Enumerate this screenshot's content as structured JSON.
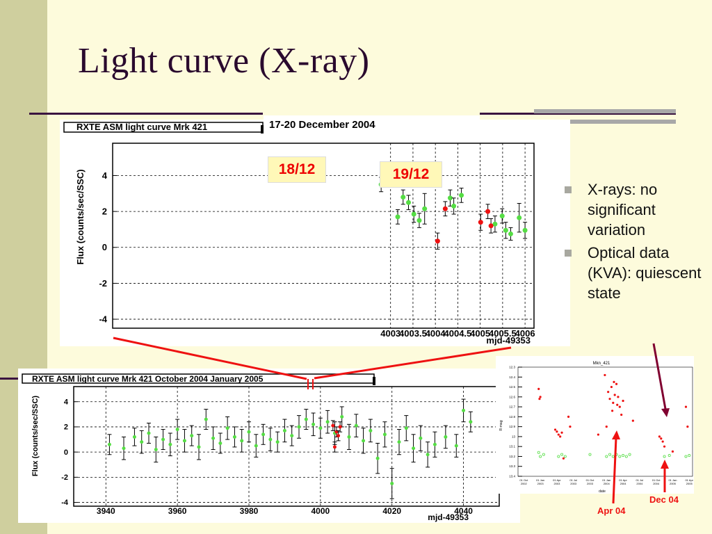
{
  "slide": {
    "title": "Light curve (X-ray)",
    "bullets": [
      "X-rays: no significant variation",
      "Optical data (KVA): quiescent state"
    ],
    "callouts": {
      "date_range": "17-20 December 2004",
      "label_18": "18/12",
      "label_19": "19/12",
      "apr": "Apr 04",
      "dec": "Dec 04"
    },
    "colors": {
      "title": "#2a0a2e",
      "background": "#fdfbdc",
      "side_bar": "#cfcf9e",
      "rule": "#3a1440",
      "green_points": "#55dd44",
      "red_points": "#ee1111",
      "arrow_dark": "#800030"
    }
  },
  "chart_data": [
    {
      "type": "scatter",
      "title": "RXTE ASM light curve Mrk 421",
      "xlabel": "mjd-49353",
      "ylabel": "Flux (counts/sec/SSC)",
      "xlim": [
        3996.8,
        4006.2
      ],
      "ylim": [
        -4.5,
        5.8
      ],
      "xticks": [
        4003,
        4003.5,
        4004,
        4004.5,
        4005,
        4005.5,
        4006
      ],
      "xtick_labels": [
        "4003",
        "4003.5",
        "4004",
        "4004.5",
        "4005",
        "4005.5",
        "4006"
      ],
      "yticks": [
        -4,
        -2,
        0,
        2,
        4
      ],
      "grid": true,
      "series": [
        {
          "color": "green",
          "points": [
            {
              "x": 4002.79,
              "y": 3.5,
              "err": 0.4
            },
            {
              "x": 4003.16,
              "y": 1.7,
              "err": 0.4
            },
            {
              "x": 4003.28,
              "y": 2.8,
              "err": 0.4
            },
            {
              "x": 4003.4,
              "y": 2.5,
              "err": 0.4
            },
            {
              "x": 4003.52,
              "y": 1.85,
              "err": 0.45
            },
            {
              "x": 4003.64,
              "y": 1.5,
              "err": 0.4
            },
            {
              "x": 4003.76,
              "y": 2.15,
              "err": 0.85
            },
            {
              "x": 4004.33,
              "y": 2.75,
              "err": 0.45
            },
            {
              "x": 4004.41,
              "y": 2.3,
              "err": 0.45
            },
            {
              "x": 4004.58,
              "y": 2.9,
              "err": 0.4
            },
            {
              "x": 4005.33,
              "y": 1.3,
              "err": 0.45
            },
            {
              "x": 4005.49,
              "y": 1.75,
              "err": 0.4
            },
            {
              "x": 4005.57,
              "y": 0.95,
              "err": 0.45
            },
            {
              "x": 4005.68,
              "y": 0.75,
              "err": 0.35
            },
            {
              "x": 4005.87,
              "y": 1.65,
              "err": 0.8
            },
            {
              "x": 4006.0,
              "y": 0.95,
              "err": 0.45
            }
          ]
        },
        {
          "color": "red",
          "points": [
            {
              "x": 4004.05,
              "y": 0.35,
              "err": 0.45
            },
            {
              "x": 4004.22,
              "y": 2.15,
              "err": 0.4
            },
            {
              "x": 4005.01,
              "y": 1.4,
              "err": 0.45
            },
            {
              "x": 4005.17,
              "y": 2.0,
              "err": 0.4
            },
            {
              "x": 4005.24,
              "y": 1.2,
              "err": 0.4
            }
          ]
        }
      ]
    },
    {
      "type": "scatter",
      "title": "RXTE ASM light curve Mrk 421 October 2004 January 2005",
      "xlabel": "mjd-49353",
      "ylabel": "Flux (counts/sec/SSC)",
      "xlim": [
        3931,
        4050
      ],
      "ylim": [
        -4.3,
        5.2
      ],
      "xticks": [
        3940,
        3960,
        3980,
        4000,
        4020,
        4040
      ],
      "xtick_labels": [
        "3940",
        "3960",
        "3980",
        "4000",
        "4020",
        "4040"
      ],
      "yticks": [
        -4,
        -2,
        0,
        2,
        4
      ],
      "grid": true,
      "series": [
        {
          "color": "green",
          "points": [
            {
              "x": 3941,
              "y": 0.6,
              "err": 0.8
            },
            {
              "x": 3945,
              "y": 0.3,
              "err": 0.9
            },
            {
              "x": 3948,
              "y": 1.2,
              "err": 0.7
            },
            {
              "x": 3950,
              "y": 0.8,
              "err": 0.9
            },
            {
              "x": 3952,
              "y": 1.5,
              "err": 0.8
            },
            {
              "x": 3954,
              "y": 0.2,
              "err": 1.0
            },
            {
              "x": 3956,
              "y": 1.0,
              "err": 0.8
            },
            {
              "x": 3958,
              "y": 0.6,
              "err": 0.9
            },
            {
              "x": 3960,
              "y": 1.8,
              "err": 0.8
            },
            {
              "x": 3962,
              "y": 0.9,
              "err": 0.9
            },
            {
              "x": 3964,
              "y": 1.3,
              "err": 0.8
            },
            {
              "x": 3966,
              "y": 0.4,
              "err": 1.0
            },
            {
              "x": 3968,
              "y": 2.6,
              "err": 0.8
            },
            {
              "x": 3970,
              "y": 1.1,
              "err": 0.9
            },
            {
              "x": 3972,
              "y": 0.7,
              "err": 0.8
            },
            {
              "x": 3974,
              "y": 1.9,
              "err": 0.9
            },
            {
              "x": 3976,
              "y": 1.2,
              "err": 0.8
            },
            {
              "x": 3978,
              "y": 0.9,
              "err": 0.9
            },
            {
              "x": 3980,
              "y": 1.6,
              "err": 0.8
            },
            {
              "x": 3982,
              "y": 0.5,
              "err": 0.9
            },
            {
              "x": 3984,
              "y": 1.4,
              "err": 0.8
            },
            {
              "x": 3986,
              "y": 1.0,
              "err": 0.9
            },
            {
              "x": 3988,
              "y": 0.8,
              "err": 0.8
            },
            {
              "x": 3990,
              "y": 1.7,
              "err": 0.9
            },
            {
              "x": 3992,
              "y": 1.3,
              "err": 0.8
            },
            {
              "x": 3994,
              "y": 2.0,
              "err": 0.9
            },
            {
              "x": 3996,
              "y": 2.6,
              "err": 0.8
            },
            {
              "x": 3998,
              "y": 2.2,
              "err": 0.9
            },
            {
              "x": 4000,
              "y": 1.9,
              "err": 0.8
            },
            {
              "x": 4002,
              "y": 2.4,
              "err": 0.9
            },
            {
              "x": 4004,
              "y": 1.5,
              "err": 0.9
            },
            {
              "x": 4006,
              "y": 2.8,
              "err": 0.8
            },
            {
              "x": 4008,
              "y": 1.2,
              "err": 1.0
            },
            {
              "x": 4010,
              "y": 2.1,
              "err": 0.9
            },
            {
              "x": 4012,
              "y": 0.9,
              "err": 1.0
            },
            {
              "x": 4014,
              "y": 1.7,
              "err": 0.9
            },
            {
              "x": 4016,
              "y": -0.5,
              "err": 1.2
            },
            {
              "x": 4018,
              "y": 1.4,
              "err": 1.0
            },
            {
              "x": 4020,
              "y": -2.5,
              "err": 1.2
            },
            {
              "x": 4022,
              "y": 0.8,
              "err": 1.0
            },
            {
              "x": 4024,
              "y": 1.9,
              "err": 1.0
            },
            {
              "x": 4026,
              "y": 0.3,
              "err": 1.1
            },
            {
              "x": 4028,
              "y": 1.1,
              "err": 1.0
            },
            {
              "x": 4030,
              "y": -0.2,
              "err": 1.0
            },
            {
              "x": 4032,
              "y": 0.6,
              "err": 1.0
            },
            {
              "x": 4035,
              "y": 1.2,
              "err": 0.9
            },
            {
              "x": 4038,
              "y": 0.5,
              "err": 0.9
            },
            {
              "x": 4040,
              "y": 3.3,
              "err": 0.9
            },
            {
              "x": 4042,
              "y": 2.4,
              "err": 0.8
            }
          ]
        },
        {
          "color": "red",
          "points": [
            {
              "x": 4003.5,
              "y": 2.1,
              "err": 0.4
            },
            {
              "x": 4004.0,
              "y": 0.4,
              "err": 0.4
            },
            {
              "x": 4004.5,
              "y": 1.6,
              "err": 0.4
            },
            {
              "x": 4005.0,
              "y": 1.3,
              "err": 0.4
            },
            {
              "x": 4005.5,
              "y": 2.0,
              "err": 0.4
            }
          ]
        }
      ]
    },
    {
      "type": "scatter",
      "title": "Mkn_421",
      "xlabel": "date",
      "ylabel": "R-mag",
      "ylim": [
        12.3,
        13.4
      ],
      "y_inverted": true,
      "yticks": [
        12.3,
        12.4,
        12.5,
        12.6,
        12.7,
        12.8,
        12.9,
        13,
        13.1,
        13.2,
        13.3,
        13.4
      ],
      "ytick_labels": [
        "12.3",
        "12.4",
        "12.5",
        "12.6",
        "12.7",
        "12.8",
        "12.9",
        "13",
        "13.1",
        "13.2",
        "13.3",
        "13.4"
      ],
      "xticks": [
        0,
        1,
        2,
        3,
        4,
        5,
        6,
        7,
        8,
        9,
        10
      ],
      "xtick_labels": [
        "01 Oct 2002",
        "01 Jan 2003",
        "01 Apr 2003",
        "01 Jul 2003",
        "01 Oct 2003",
        "01 Jan 2004",
        "01 Apr 2004",
        "01 Jul 2004",
        "01 Oct 2004",
        "01 Jan 2005",
        "01 Apr 2005"
      ],
      "series": [
        {
          "color": "red",
          "marker": "filled",
          "points": [
            {
              "x": 0.9,
              "y": 12.52
            },
            {
              "x": 0.95,
              "y": 12.62
            },
            {
              "x": 1.0,
              "y": 12.6
            },
            {
              "x": 1.9,
              "y": 12.93
            },
            {
              "x": 2.0,
              "y": 12.95
            },
            {
              "x": 2.1,
              "y": 12.98
            },
            {
              "x": 2.2,
              "y": 13.0
            },
            {
              "x": 2.3,
              "y": 12.96
            },
            {
              "x": 2.4,
              "y": 13.22
            },
            {
              "x": 2.7,
              "y": 12.8
            },
            {
              "x": 2.8,
              "y": 12.9
            },
            {
              "x": 4.5,
              "y": 12.98
            },
            {
              "x": 4.9,
              "y": 12.38
            },
            {
              "x": 5.1,
              "y": 12.55
            },
            {
              "x": 5.2,
              "y": 12.62
            },
            {
              "x": 5.3,
              "y": 12.5
            },
            {
              "x": 5.4,
              "y": 12.66
            },
            {
              "x": 5.5,
              "y": 12.58
            },
            {
              "x": 5.6,
              "y": 12.47
            },
            {
              "x": 5.7,
              "y": 12.6
            },
            {
              "x": 5.8,
              "y": 12.7
            },
            {
              "x": 5.9,
              "y": 12.78
            },
            {
              "x": 6.0,
              "y": 12.64
            },
            {
              "x": 5.35,
              "y": 12.74
            },
            {
              "x": 5.45,
              "y": 12.45
            },
            {
              "x": 5.65,
              "y": 12.68
            },
            {
              "x": 5.0,
              "y": 12.9
            },
            {
              "x": 6.6,
              "y": 12.84
            },
            {
              "x": 8.2,
              "y": 13.0
            },
            {
              "x": 8.3,
              "y": 13.02
            },
            {
              "x": 8.4,
              "y": 13.05
            },
            {
              "x": 8.5,
              "y": 13.1
            },
            {
              "x": 9.0,
              "y": 13.15
            },
            {
              "x": 9.8,
              "y": 12.7
            },
            {
              "x": 9.9,
              "y": 12.9
            }
          ]
        },
        {
          "color": "green",
          "marker": "open",
          "points": [
            {
              "x": 0.9,
              "y": 13.16
            },
            {
              "x": 1.0,
              "y": 13.2
            },
            {
              "x": 1.2,
              "y": 13.18
            },
            {
              "x": 2.1,
              "y": 13.2
            },
            {
              "x": 2.3,
              "y": 13.18
            },
            {
              "x": 2.5,
              "y": 13.2
            },
            {
              "x": 4.0,
              "y": 13.18
            },
            {
              "x": 5.0,
              "y": 13.2
            },
            {
              "x": 5.2,
              "y": 13.18
            },
            {
              "x": 5.4,
              "y": 13.2
            },
            {
              "x": 5.6,
              "y": 13.18
            },
            {
              "x": 5.8,
              "y": 13.2
            },
            {
              "x": 6.0,
              "y": 13.19
            },
            {
              "x": 6.2,
              "y": 13.2
            },
            {
              "x": 6.4,
              "y": 13.18
            },
            {
              "x": 8.5,
              "y": 13.2
            },
            {
              "x": 8.8,
              "y": 13.19
            },
            {
              "x": 9.8,
              "y": 13.2
            },
            {
              "x": 10.0,
              "y": 13.19
            }
          ]
        }
      ]
    }
  ]
}
